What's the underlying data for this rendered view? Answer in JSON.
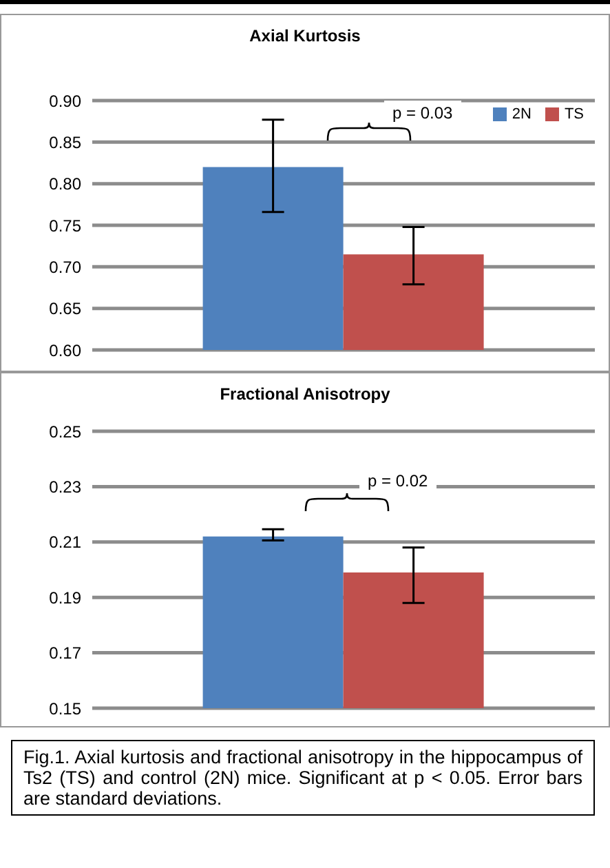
{
  "chart_data": [
    {
      "type": "bar",
      "title": "Axial Kurtosis",
      "categories": [
        null
      ],
      "series": [
        {
          "name": "2N",
          "color": "#4f81bd",
          "values": [
            0.82
          ],
          "errors": [
            [
              0.766,
              0.877
            ]
          ]
        },
        {
          "name": "TS",
          "color": "#c0504d",
          "values": [
            0.715
          ],
          "errors": [
            [
              0.679,
              0.748
            ]
          ]
        }
      ],
      "ylim": [
        0.6,
        0.9
      ],
      "yticks": [
        {
          "value": 0.6,
          "label": "0.60"
        },
        {
          "value": 0.65,
          "label": "0.65"
        },
        {
          "value": 0.7,
          "label": "0.70"
        },
        {
          "value": 0.75,
          "label": "0.75"
        },
        {
          "value": 0.8,
          "label": "0.80"
        },
        {
          "value": 0.85,
          "label": "0.85"
        },
        {
          "value": 0.9,
          "label": "0.90"
        }
      ],
      "grid": "y",
      "legend": "top right",
      "annotations": [
        "p = 0.03"
      ]
    },
    {
      "type": "bar",
      "title": "Fractional Anisotropy",
      "categories": [
        null
      ],
      "series": [
        {
          "color": "#4f81bd",
          "values": [
            0.212
          ],
          "errors": [
            [
              0.2106,
              0.2146
            ]
          ]
        },
        {
          "color": "#c0504d",
          "values": [
            0.199
          ],
          "errors": [
            [
              0.188,
              0.208
            ]
          ]
        }
      ],
      "ylim": [
        0.15,
        0.25
      ],
      "yticks": [
        0.15,
        0.17,
        0.19,
        0.21,
        0.23,
        0.25
      ],
      "grid": "y",
      "legend": false,
      "annotations": [
        "p = 0.02",
        "Fig.1. Axial kurtosis and fractional anisotropy in the hippocampus of Ts2 (TS) and control (2N) mice. Significant at p < 0.05. Error bars are standard deviations."
      ]
    }
  ]
}
